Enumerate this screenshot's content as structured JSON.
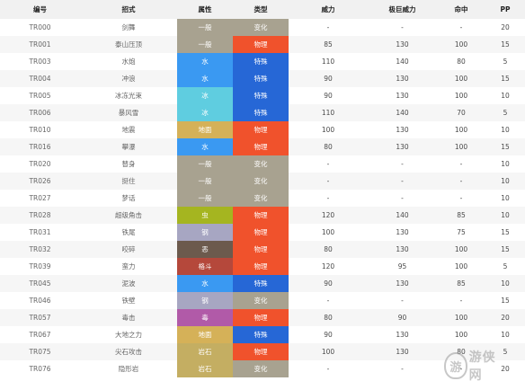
{
  "table": {
    "headers": [
      "编号",
      "招式",
      "属性",
      "类型",
      "威力",
      "极巨威力",
      "命中",
      "PP"
    ],
    "rows": [
      {
        "no": "TR000",
        "name": "剑舞",
        "type": "一般",
        "category": "变化",
        "power": "-",
        "max": "-",
        "acc": "-",
        "pp": "20"
      },
      {
        "no": "TR001",
        "name": "泰山压顶",
        "type": "一般",
        "category": "物理",
        "power": "85",
        "max": "130",
        "acc": "100",
        "pp": "15"
      },
      {
        "no": "TR003",
        "name": "水炮",
        "type": "水",
        "category": "特殊",
        "power": "110",
        "max": "140",
        "acc": "80",
        "pp": "5"
      },
      {
        "no": "TR004",
        "name": "冲浪",
        "type": "水",
        "category": "特殊",
        "power": "90",
        "max": "130",
        "acc": "100",
        "pp": "15"
      },
      {
        "no": "TR005",
        "name": "冰冻光束",
        "type": "冰",
        "category": "特殊",
        "power": "90",
        "max": "130",
        "acc": "100",
        "pp": "10"
      },
      {
        "no": "TR006",
        "name": "暴风雪",
        "type": "冰",
        "category": "特殊",
        "power": "110",
        "max": "140",
        "acc": "70",
        "pp": "5"
      },
      {
        "no": "TR010",
        "name": "地震",
        "type": "地面",
        "category": "物理",
        "power": "100",
        "max": "130",
        "acc": "100",
        "pp": "10"
      },
      {
        "no": "TR016",
        "name": "攀瀑",
        "type": "水",
        "category": "物理",
        "power": "80",
        "max": "130",
        "acc": "100",
        "pp": "15"
      },
      {
        "no": "TR020",
        "name": "替身",
        "type": "一般",
        "category": "变化",
        "power": "-",
        "max": "-",
        "acc": "-",
        "pp": "10"
      },
      {
        "no": "TR026",
        "name": "挺住",
        "type": "一般",
        "category": "变化",
        "power": "-",
        "max": "-",
        "acc": "-",
        "pp": "10"
      },
      {
        "no": "TR027",
        "name": "梦话",
        "type": "一般",
        "category": "变化",
        "power": "-",
        "max": "-",
        "acc": "-",
        "pp": "10"
      },
      {
        "no": "TR028",
        "name": "超级角击",
        "type": "虫",
        "category": "物理",
        "power": "120",
        "max": "140",
        "acc": "85",
        "pp": "10"
      },
      {
        "no": "TR031",
        "name": "铁尾",
        "type": "钢",
        "category": "物理",
        "power": "100",
        "max": "130",
        "acc": "75",
        "pp": "15"
      },
      {
        "no": "TR032",
        "name": "咬碎",
        "type": "恶",
        "category": "物理",
        "power": "80",
        "max": "130",
        "acc": "100",
        "pp": "15"
      },
      {
        "no": "TR039",
        "name": "蛮力",
        "type": "格斗",
        "category": "物理",
        "power": "120",
        "max": "95",
        "acc": "100",
        "pp": "5"
      },
      {
        "no": "TR045",
        "name": "泥波",
        "type": "水",
        "category": "特殊",
        "power": "90",
        "max": "130",
        "acc": "85",
        "pp": "10"
      },
      {
        "no": "TR046",
        "name": "铁壁",
        "type": "钢",
        "category": "变化",
        "power": "-",
        "max": "-",
        "acc": "-",
        "pp": "15"
      },
      {
        "no": "TR057",
        "name": "毒击",
        "type": "毒",
        "category": "物理",
        "power": "80",
        "max": "90",
        "acc": "100",
        "pp": "20"
      },
      {
        "no": "TR067",
        "name": "大地之力",
        "type": "地面",
        "category": "特殊",
        "power": "90",
        "max": "130",
        "acc": "100",
        "pp": "10"
      },
      {
        "no": "TR075",
        "name": "尖石攻击",
        "type": "岩石",
        "category": "物理",
        "power": "100",
        "max": "130",
        "acc": "80",
        "pp": "5"
      },
      {
        "no": "TR076",
        "name": "隐形岩",
        "type": "岩石",
        "category": "变化",
        "power": "-",
        "max": "-",
        "acc": "-",
        "pp": "20"
      }
    ]
  },
  "type_colors": {
    "一般": "#a8a290",
    "水": "#3a99f2",
    "冰": "#5fcde0",
    "地面": "#d5b158",
    "虫": "#a5b520",
    "钢": "#a7a6c2",
    "恶": "#6c5a4d",
    "格斗": "#b5483b",
    "毒": "#b15aa8",
    "岩石": "#c4ae62"
  },
  "category_colors": {
    "变化": "#a8a290",
    "物理": "#f0522c",
    "特殊": "#2667d6"
  },
  "watermark": {
    "logo_glyph": "游",
    "text": "游侠网",
    "icon": "ali-logo-icon"
  }
}
